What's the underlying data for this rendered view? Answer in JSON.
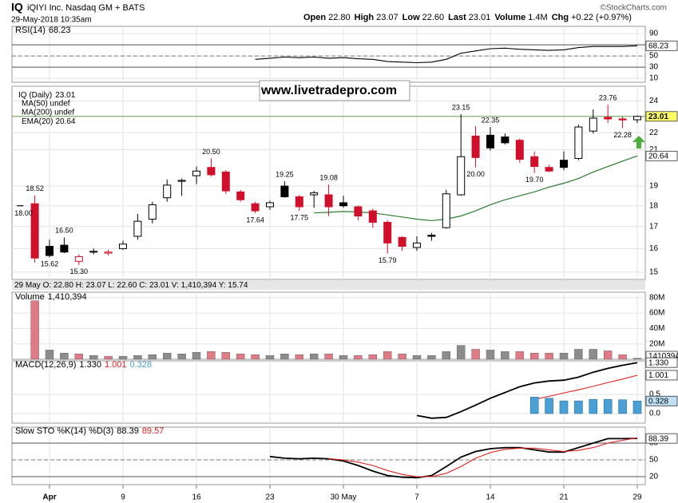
{
  "header": {
    "symbol": "IQ",
    "company": "iQIYI Inc. Nasdaq GM + BATS",
    "timestamp": "29-May-2018 10:35am",
    "quote": [
      {
        "label": "Open",
        "value": "22.80"
      },
      {
        "label": "High",
        "value": "23.07"
      },
      {
        "label": "Low",
        "value": "22.60"
      },
      {
        "label": "Last",
        "value": "23.01"
      },
      {
        "label": "Volume",
        "value": "1.4M"
      },
      {
        "label": "Chg",
        "value": "+0.22 (+0.97%)"
      }
    ],
    "copyright": "©StockCharts.com"
  },
  "chart_data": [
    {
      "type": "line",
      "ylim": [
        3,
        103
      ],
      "yticks": [
        10,
        30,
        50,
        70,
        90
      ],
      "bands": [
        30,
        70
      ],
      "midline": 50,
      "series": [
        {
          "name": "RSI(14)",
          "color": "#000000",
          "values": [
            null,
            null,
            null,
            null,
            null,
            null,
            null,
            null,
            null,
            null,
            null,
            null,
            null,
            null,
            null,
            44,
            46,
            48,
            47,
            48,
            46,
            47,
            45,
            44,
            40,
            39,
            38,
            39,
            44,
            55,
            59,
            63,
            64,
            62,
            61,
            60,
            61,
            65,
            67,
            67,
            67,
            68.23
          ]
        }
      ]
    },
    {
      "type": "candlestick",
      "title": "IQ (Daily)",
      "log_scale": true,
      "ylim": [
        14.7,
        25
      ],
      "yticks": [
        15,
        16,
        17,
        18,
        19,
        21,
        22,
        24
      ],
      "categories": [
        null,
        "Apr",
        null,
        null,
        null,
        null,
        "9",
        null,
        null,
        null,
        null,
        "16",
        null,
        null,
        null,
        null,
        "23",
        null,
        null,
        null,
        null,
        "30 May",
        null,
        null,
        null,
        null,
        "7",
        null,
        null,
        null,
        null,
        "14",
        null,
        null,
        null,
        null,
        "21",
        null,
        null,
        null,
        null,
        "29"
      ],
      "open": [
        18.1,
        16.1,
        16.15,
        15.45,
        15.85,
        15.8,
        16.0,
        16.55,
        17.35,
        18.4,
        19.25,
        19.55,
        20.0,
        19.75,
        18.7,
        18.1,
        17.95,
        19.0,
        18.45,
        18.55,
        18.55,
        18.15,
        17.95,
        17.75,
        17.2,
        16.5,
        16.05,
        16.6,
        16.95,
        18.55,
        21.8,
        21.85,
        21.75,
        21.55,
        20.6,
        20.0,
        20.4,
        20.5,
        22.1,
        22.95,
        22.85,
        22.8
      ],
      "high": [
        18.52,
        16.4,
        16.5,
        15.75,
        16.0,
        15.95,
        16.35,
        17.6,
        18.2,
        19.35,
        19.4,
        20.05,
        20.5,
        19.85,
        18.8,
        18.2,
        18.25,
        19.25,
        18.55,
        18.75,
        19.08,
        18.5,
        18.0,
        17.85,
        17.3,
        16.55,
        16.55,
        16.7,
        18.8,
        23.15,
        22.4,
        22.35,
        21.95,
        21.65,
        20.9,
        20.15,
        20.9,
        22.5,
        23.45,
        23.76,
        23.0,
        23.07
      ],
      "low": [
        15.4,
        15.62,
        15.8,
        15.3,
        15.75,
        15.7,
        15.95,
        16.4,
        17.15,
        18.2,
        18.5,
        19.1,
        19.5,
        18.6,
        18.2,
        17.64,
        17.8,
        18.4,
        17.75,
        17.9,
        17.5,
        17.9,
        17.3,
        16.95,
        15.79,
        15.9,
        15.9,
        16.35,
        16.9,
        18.5,
        20.0,
        20.95,
        21.3,
        20.25,
        19.7,
        19.75,
        19.85,
        20.4,
        21.95,
        22.6,
        22.28,
        22.6
      ],
      "close": [
        15.59,
        15.7,
        15.85,
        15.65,
        15.88,
        15.85,
        16.2,
        17.25,
        18.05,
        19.05,
        19.3,
        19.8,
        19.6,
        18.75,
        18.3,
        17.75,
        18.15,
        18.45,
        17.95,
        18.65,
        17.95,
        18.0,
        17.5,
        17.2,
        16.25,
        16.1,
        16.25,
        16.55,
        18.6,
        20.6,
        20.55,
        21.1,
        21.4,
        20.45,
        20.05,
        19.8,
        20.0,
        22.35,
        22.9,
        22.85,
        22.79,
        23.01
      ],
      "up_color": "#000000",
      "down_color": "#d0102a",
      "indicators": [
        {
          "name": "MA(50) undef",
          "color": "#00007f"
        },
        {
          "name": "MA(200) undef",
          "color": "#c00000"
        }
      ],
      "series": [
        {
          "name": "EMA(20)",
          "color": "#2e7d32",
          "values": [
            null,
            null,
            null,
            null,
            null,
            null,
            null,
            null,
            null,
            null,
            null,
            null,
            null,
            null,
            null,
            null,
            null,
            null,
            null,
            17.65,
            17.68,
            17.72,
            17.7,
            17.65,
            17.55,
            17.45,
            17.35,
            17.28,
            17.35,
            17.5,
            17.75,
            18.05,
            18.3,
            18.5,
            18.7,
            18.95,
            19.15,
            19.4,
            19.75,
            20.05,
            20.35,
            20.64
          ]
        }
      ],
      "ipo_marker": {
        "value": 18,
        "label": "18.00"
      },
      "annotations": [
        18.52,
        15.62,
        {
          "value": 16.5,
          "label": "16.50"
        },
        {
          "value": 15.3,
          "label": "15.30"
        },
        {
          "value": 20.5,
          "label": "20.50"
        },
        17.64,
        19.25,
        17.75,
        19.08,
        15.79,
        23.15,
        {
          "value": 20,
          "label": "20.00"
        },
        22.35,
        {
          "value": 19.7,
          "label": "19.70"
        },
        23.76,
        22.28
      ],
      "info_bar": "29 May O: 22.80 H: 23.07 L: 22.60 C: 23.01 V: 1,410,394 Y: 15.74",
      "watermark": "www.livetradepro.com"
    },
    {
      "type": "bar",
      "title": "Volume",
      "legend_label": "1,410,394",
      "up_color": "#8c8c8c",
      "down_color": "#e07b86",
      "ylim": [
        0,
        87000000
      ],
      "yticks": [
        {
          "value": 20000000,
          "label": "20M"
        },
        {
          "value": 40000000,
          "label": "40M"
        },
        {
          "value": 60000000,
          "label": "60M"
        },
        {
          "value": 80000000,
          "label": "80M"
        }
      ],
      "values": [
        76000000,
        12000000,
        8000000,
        7000000,
        5000000,
        4000000,
        4000000,
        5000000,
        6000000,
        8000000,
        7000000,
        9000000,
        10000000,
        9000000,
        7000000,
        6000000,
        5000000,
        7000000,
        6000000,
        7000000,
        7000000,
        5000000,
        5000000,
        6000000,
        10000000,
        7000000,
        5000000,
        5000000,
        10000000,
        18000000,
        13000000,
        12000000,
        10000000,
        10000000,
        8000000,
        8000000,
        8000000,
        13000000,
        13000000,
        11000000,
        6000000,
        1410394
      ]
    },
    {
      "type": "line",
      "title": "MACD(12,26,9)",
      "ylim": [
        -0.25,
        1.375
      ],
      "yticks": [
        {
          "value": 0,
          "label": "0.0"
        },
        0.5
      ],
      "series": [
        {
          "color": "#000000",
          "last_label": "1.330",
          "values": [
            null,
            null,
            null,
            null,
            null,
            null,
            null,
            null,
            null,
            null,
            null,
            null,
            null,
            null,
            null,
            null,
            null,
            null,
            null,
            null,
            null,
            null,
            null,
            null,
            null,
            null,
            -0.05,
            -0.12,
            -0.1,
            0.05,
            0.22,
            0.4,
            0.55,
            0.7,
            0.8,
            0.85,
            0.87,
            0.95,
            1.08,
            1.18,
            1.26,
            1.33
          ]
        },
        {
          "color": "#e02020",
          "values": [
            null,
            null,
            null,
            null,
            null,
            null,
            null,
            null,
            null,
            null,
            null,
            null,
            null,
            null,
            null,
            null,
            null,
            null,
            null,
            null,
            null,
            null,
            null,
            null,
            null,
            null,
            null,
            null,
            null,
            null,
            null,
            null,
            null,
            null,
            0.37,
            0.45,
            0.54,
            0.62,
            0.71,
            0.81,
            0.9,
            1.001
          ]
        },
        {
          "color": "#4a9fd4",
          "type": "bar",
          "values": [
            null,
            null,
            null,
            null,
            null,
            null,
            null,
            null,
            null,
            null,
            null,
            null,
            null,
            null,
            null,
            null,
            null,
            null,
            null,
            null,
            null,
            null,
            null,
            null,
            null,
            null,
            null,
            null,
            null,
            null,
            null,
            null,
            null,
            null,
            0.43,
            0.4,
            0.33,
            0.33,
            0.37,
            0.37,
            0.36,
            0.328
          ]
        }
      ]
    },
    {
      "type": "line",
      "title": "Slow STO %K(14) %D(3)",
      "ylim": [
        5.7,
        108.6
      ],
      "yticks": [
        20,
        50,
        80
      ],
      "bands": [
        20,
        80
      ],
      "midline": 50,
      "series": [
        {
          "color": "#000000",
          "values": [
            null,
            null,
            null,
            null,
            null,
            null,
            null,
            null,
            null,
            null,
            null,
            null,
            null,
            null,
            null,
            null,
            56,
            53,
            52,
            53,
            52,
            48,
            40,
            30,
            22,
            19,
            18,
            22,
            38,
            55,
            65,
            70,
            72,
            72,
            68,
            64,
            64,
            72,
            80,
            88,
            88,
            88.39
          ]
        },
        {
          "color": "#e02020",
          "values": [
            null,
            null,
            null,
            null,
            null,
            null,
            null,
            null,
            null,
            null,
            null,
            null,
            null,
            null,
            null,
            null,
            null,
            null,
            null,
            null,
            52,
            50,
            46,
            40,
            31,
            24,
            20,
            20,
            26,
            38,
            53,
            63,
            69,
            71,
            71,
            68,
            65,
            67,
            72,
            80,
            85,
            89.57
          ]
        }
      ]
    }
  ]
}
